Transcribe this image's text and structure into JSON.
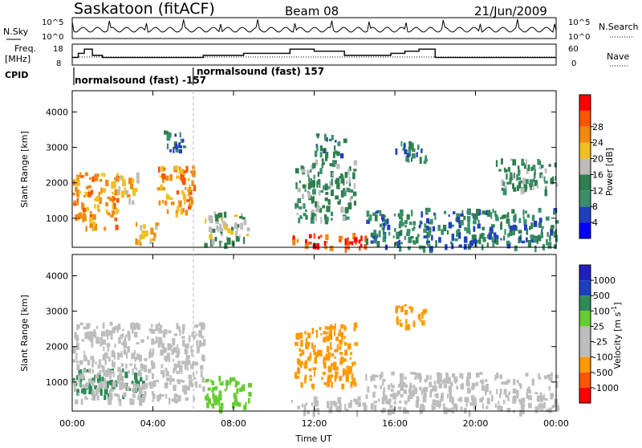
{
  "header": {
    "station": "Saskatoon (fitACF)",
    "beam": "Beam 08",
    "date": "21/Jun/2009"
  },
  "labels": {
    "nsky": "N.Sky",
    "freq_line1": "Freq.",
    "freq_line2": "[MHz]",
    "cpid": "CPID",
    "nsearch": "N.Search",
    "nave": "Nave"
  },
  "cpid_segments": [
    {
      "label": "normalsound (fast) -157",
      "start_h": 0.0
    },
    {
      "label": "normalsound (fast) 157",
      "start_h": 6.0
    }
  ],
  "colors": {
    "power": [
      "#0000ff",
      "#1f3fbf",
      "#3a8f6a",
      "#2f7f4f",
      "#bcbcbc",
      "#f0c020",
      "#f08a10",
      "#ff5500",
      "#ff0000"
    ],
    "velocity": [
      "#ff0000",
      "#ff5500",
      "#ff9a00",
      "#bdbdbd",
      "#bdbdbd",
      "#66cc33",
      "#2e8b57",
      "#1f3fbf",
      "#2020c0"
    ]
  },
  "chart_data": [
    {
      "type": "line",
      "title": "",
      "xlabel": "",
      "ylabel": "N.Sky",
      "y_right_label": "N.Search",
      "ylim_labels": [
        "10^5",
        "10^0"
      ],
      "xlim": [
        0,
        24
      ],
      "series": []
    },
    {
      "type": "line",
      "title": "",
      "xlabel": "",
      "ylabel": "Freq. [MHz]",
      "y_right_label": "Nave",
      "yticks_left": [
        "18",
        "8"
      ],
      "yticks_right": [
        "60",
        "0"
      ],
      "xlim": [
        0,
        24
      ],
      "series": [
        {
          "x": [
            0,
            0.3,
            0.6,
            1.0,
            1.5,
            2.5,
            3.5,
            4.5,
            6.0,
            6.5,
            7.0,
            8.5,
            10.8,
            12.0,
            13.5,
            15.0,
            15.8,
            16.5,
            17.2,
            18.0,
            19.0,
            20.0,
            21.5,
            22.5,
            23.5,
            24.0
          ],
          "values": [
            12,
            14,
            16,
            13,
            12,
            12,
            12,
            12,
            12,
            13,
            13,
            14,
            16,
            15,
            13,
            13,
            14,
            15,
            16,
            12,
            12,
            12,
            12,
            12,
            12,
            12
          ]
        }
      ]
    },
    {
      "type": "heatmap",
      "title": "",
      "xlabel": "",
      "ylabel": "Slant Range [km]",
      "yticks": [
        1000,
        2000,
        3000,
        4000
      ],
      "ylim": [
        180,
        4600
      ],
      "xlim": [
        0,
        24
      ],
      "colorbar_label": "Power [dB]",
      "colorbar_ticks": [
        4,
        8,
        12,
        16,
        20,
        24,
        28
      ],
      "series": [
        {
          "name": "",
          "x_start": 0.0,
          "x_end": 2.2,
          "y_low": 700,
          "y_high": 2300,
          "value": 24
        },
        {
          "name": "",
          "x_start": 2.0,
          "x_end": 3.2,
          "y_low": 1500,
          "y_high": 2300,
          "value": 20
        },
        {
          "name": "",
          "x_start": 3.0,
          "x_end": 4.2,
          "y_low": 300,
          "y_high": 900,
          "value": 20
        },
        {
          "name": "",
          "x_start": 4.2,
          "x_end": 6.0,
          "y_low": 1200,
          "y_high": 2500,
          "value": 24
        },
        {
          "name": "",
          "x_start": 4.5,
          "x_end": 5.5,
          "y_low": 2900,
          "y_high": 3500,
          "value": 8
        },
        {
          "name": "",
          "x_start": 6.5,
          "x_end": 8.8,
          "y_low": 300,
          "y_high": 1200,
          "value": 16
        },
        {
          "name": "",
          "x_start": 10.8,
          "x_end": 14.5,
          "y_low": 200,
          "y_high": 600,
          "value": 28
        },
        {
          "name": "",
          "x_start": 11.0,
          "x_end": 14.0,
          "y_low": 1000,
          "y_high": 2700,
          "value": 12
        },
        {
          "name": "",
          "x_start": 12.0,
          "x_end": 13.5,
          "y_low": 2800,
          "y_high": 3400,
          "value": 8
        },
        {
          "name": "",
          "x_start": 14.5,
          "x_end": 24.0,
          "y_low": 200,
          "y_high": 1300,
          "value": 8
        },
        {
          "name": "",
          "x_start": 16.0,
          "x_end": 17.5,
          "y_low": 2600,
          "y_high": 3200,
          "value": 8
        },
        {
          "name": "",
          "x_start": 21.0,
          "x_end": 24.0,
          "y_low": 1800,
          "y_high": 2700,
          "value": 12
        }
      ]
    },
    {
      "type": "heatmap",
      "title": "",
      "xlabel": "Time UT",
      "ylabel": "Slant Range [km]",
      "yticks": [
        1000,
        2000,
        3000,
        4000
      ],
      "ylim": [
        180,
        4600
      ],
      "xlim": [
        0,
        24
      ],
      "xticks": [
        "00:00",
        "04:00",
        "08:00",
        "12:00",
        "16:00",
        "20:00",
        "00:00"
      ],
      "colorbar_label": "Velocity [m s^-1]",
      "colorbar_ticks": [
        1000,
        500,
        100,
        25,
        -25,
        -100,
        -500,
        -1000
      ],
      "series": [
        {
          "name": "",
          "x_start": 0.0,
          "x_end": 3.5,
          "y_low": 600,
          "y_high": 1400,
          "value": 200
        },
        {
          "name": "",
          "x_start": 0.0,
          "x_end": 6.5,
          "y_low": 500,
          "y_high": 2700,
          "value": 0
        },
        {
          "name": "",
          "x_start": 6.5,
          "x_end": 8.8,
          "y_low": 300,
          "y_high": 1200,
          "value": 60
        },
        {
          "name": "",
          "x_start": 11.0,
          "x_end": 14.0,
          "y_low": 900,
          "y_high": 2700,
          "value": -300
        },
        {
          "name": "",
          "x_start": 10.8,
          "x_end": 14.5,
          "y_low": 200,
          "y_high": 600,
          "value": -50
        },
        {
          "name": "",
          "x_start": 16.0,
          "x_end": 17.5,
          "y_low": 2600,
          "y_high": 3200,
          "value": -300
        },
        {
          "name": "",
          "x_start": 14.5,
          "x_end": 24.0,
          "y_low": 200,
          "y_high": 1300,
          "value": 0
        }
      ]
    }
  ]
}
